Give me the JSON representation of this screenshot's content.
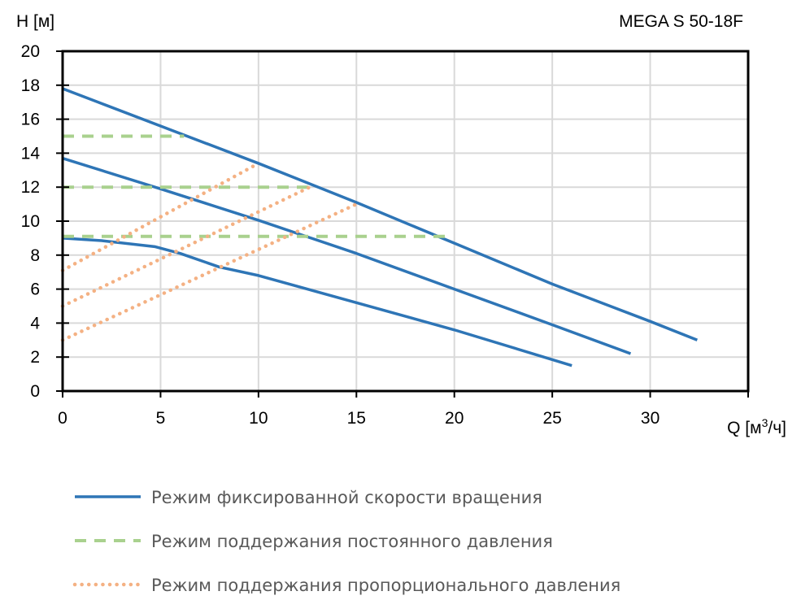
{
  "chart_data": {
    "type": "line",
    "title": "MEGA S 50-18F",
    "xlabel": "Q [м³/ч]",
    "ylabel": "H [м]",
    "xlim": [
      0,
      35
    ],
    "ylim": [
      0,
      20
    ],
    "xticks": [
      0,
      5,
      10,
      15,
      20,
      25,
      30
    ],
    "yticks": [
      0,
      2,
      4,
      6,
      8,
      10,
      12,
      14,
      16,
      18,
      20
    ],
    "grid": true,
    "legend_position": "bottom",
    "legend": [
      {
        "name": "Режим фиксированной скорости вращения",
        "style": "solid",
        "color": "#2E75B6"
      },
      {
        "name": "Режим поддержания постоянного давления",
        "style": "dashed",
        "color": "#A9D18E"
      },
      {
        "name": "Режим поддержания пропорционального давления",
        "style": "dotted",
        "color": "#F4B183"
      }
    ],
    "series": [
      {
        "group": 0,
        "points": [
          [
            0,
            17.8
          ],
          [
            5,
            15.6
          ],
          [
            10,
            13.4
          ],
          [
            15,
            11.1
          ],
          [
            20,
            8.7
          ],
          [
            25,
            6.3
          ],
          [
            30,
            4.1
          ],
          [
            32.4,
            3.0
          ]
        ]
      },
      {
        "group": 0,
        "points": [
          [
            0,
            13.7
          ],
          [
            5,
            11.9
          ],
          [
            10,
            10.05
          ],
          [
            15,
            8.1
          ],
          [
            20,
            6.0
          ],
          [
            25,
            3.9
          ],
          [
            29,
            2.2
          ]
        ]
      },
      {
        "group": 0,
        "points": [
          [
            0,
            9.0
          ],
          [
            2,
            8.85
          ],
          [
            4.7,
            8.5
          ],
          [
            6,
            8.1
          ],
          [
            8,
            7.3
          ],
          [
            10,
            6.8
          ],
          [
            15,
            5.2
          ],
          [
            20,
            3.6
          ],
          [
            26,
            1.5
          ]
        ]
      },
      {
        "group": 1,
        "points": [
          [
            0,
            15.0
          ],
          [
            6.2,
            15.0
          ]
        ]
      },
      {
        "group": 1,
        "points": [
          [
            0,
            12.0
          ],
          [
            12.8,
            12.0
          ]
        ]
      },
      {
        "group": 1,
        "points": [
          [
            0,
            9.1
          ],
          [
            19.9,
            9.1
          ]
        ]
      },
      {
        "group": 2,
        "points": [
          [
            0,
            7.1
          ],
          [
            10,
            13.4
          ]
        ]
      },
      {
        "group": 2,
        "points": [
          [
            0,
            5.0
          ],
          [
            12.8,
            12.1
          ]
        ]
      },
      {
        "group": 2,
        "points": [
          [
            0,
            3.0
          ],
          [
            15,
            11.0
          ]
        ]
      }
    ]
  }
}
